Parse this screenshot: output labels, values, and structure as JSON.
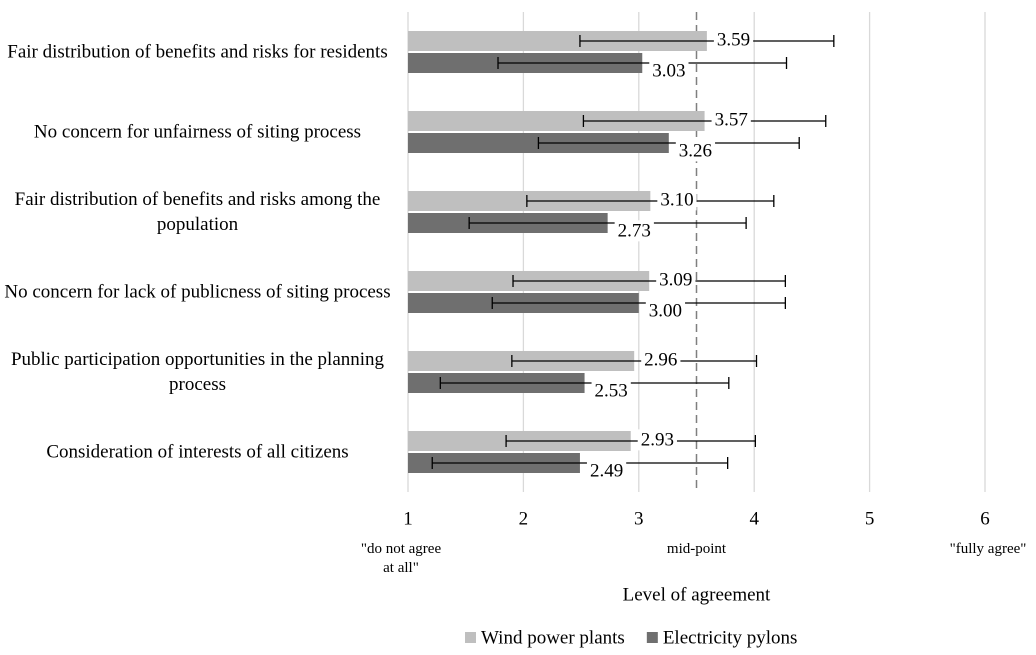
{
  "chart_data": {
    "type": "hbar_errorbar",
    "categories": [
      "Fair distribution of benefits and risks for residents",
      "No concern for unfairness of siting process",
      "Fair distribution of benefits and risks among the population",
      "No concern for lack of publicness of siting process",
      "Public participation opportunities in the planning process",
      "Consideration of interests of all citizens"
    ],
    "series": [
      {
        "name": "Wind power plants",
        "color": "#bfbfbf",
        "values": [
          3.59,
          3.57,
          3.1,
          3.09,
          2.96,
          2.93
        ],
        "value_labels": [
          "3.59",
          "3.57",
          "3.10",
          "3.09",
          "2.96",
          "2.93"
        ],
        "errors": [
          1.1,
          1.05,
          1.07,
          1.18,
          1.06,
          1.08
        ]
      },
      {
        "name": "Electricity pylons",
        "color": "#6f6f6f",
        "values": [
          3.03,
          3.26,
          2.73,
          3.0,
          2.53,
          2.49
        ],
        "value_labels": [
          "3.03",
          "3.26",
          "2.73",
          "3.00",
          "2.53",
          "2.49"
        ],
        "errors": [
          1.25,
          1.13,
          1.2,
          1.27,
          1.25,
          1.28
        ]
      }
    ],
    "xlim": [
      1,
      6
    ],
    "xticks": [
      1,
      2,
      3,
      4,
      5,
      6
    ],
    "grid": true,
    "reference_line": {
      "value": 3.5,
      "label": "mid-point"
    },
    "x_annotations": [
      {
        "value": 1,
        "label": "\"do not agree at all\""
      },
      {
        "value": 6,
        "label": "\"fully agree\""
      }
    ],
    "xlabel": "Level of agreement",
    "legend": "bottom"
  }
}
